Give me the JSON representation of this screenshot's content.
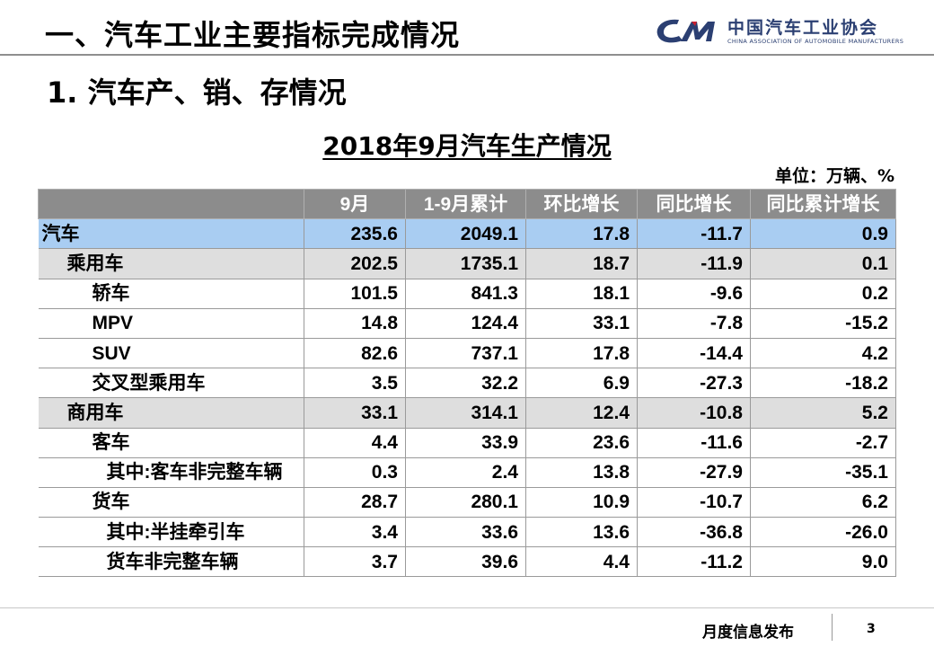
{
  "header": {
    "title": "一、汽车工业主要指标完成情况",
    "logo": {
      "icon": "cam-logo-icon",
      "name": "中国汽车工业协会",
      "english": "CHINA ASSOCIATION OF AUTOMOBILE MANUFACTURERS",
      "color": "#2b3f72"
    }
  },
  "section_title": "1. 汽车产、销、存情况",
  "table_title": "2018年9月汽车生产情况",
  "unit": "单位：万辆、%",
  "table": {
    "columns": [
      "",
      "9月",
      "1-9月累计",
      "环比增长",
      "同比增长",
      "同比累计增长"
    ],
    "rows": [
      [
        "汽车",
        "235.6",
        "2049.1",
        "17.8",
        "-11.7",
        "0.9"
      ],
      [
        "乘用车",
        "202.5",
        "1735.1",
        "18.7",
        "-11.9",
        "0.1"
      ],
      [
        "轿车",
        "101.5",
        "841.3",
        "18.1",
        "-9.6",
        "0.2"
      ],
      [
        "MPV",
        "14.8",
        "124.4",
        "33.1",
        "-7.8",
        "-15.2"
      ],
      [
        "SUV",
        "82.6",
        "737.1",
        "17.8",
        "-14.4",
        "4.2"
      ],
      [
        "交叉型乘用车",
        "3.5",
        "32.2",
        "6.9",
        "-27.3",
        "-18.2"
      ],
      [
        "商用车",
        "33.1",
        "314.1",
        "12.4",
        "-10.8",
        "5.2"
      ],
      [
        "客车",
        "4.4",
        "33.9",
        "23.6",
        "-11.6",
        "-2.7"
      ],
      [
        "其中:客车非完整车辆",
        "0.3",
        "2.4",
        "13.8",
        "-27.9",
        "-35.1"
      ],
      [
        "货车",
        "28.7",
        "280.1",
        "10.9",
        "-10.7",
        "6.2"
      ],
      [
        "其中:半挂牵引车",
        "3.4",
        "33.6",
        "13.6",
        "-36.8",
        "-26.0"
      ],
      [
        "货车非完整车辆",
        "3.7",
        "39.6",
        "4.4",
        "-11.2",
        "9.0"
      ]
    ],
    "header_color": "#8c8c8c",
    "total_row_color": "#a9cdf2",
    "subtotal_row_color": "#dedede"
  },
  "footer": {
    "label": "月度信息发布",
    "page": "3"
  }
}
